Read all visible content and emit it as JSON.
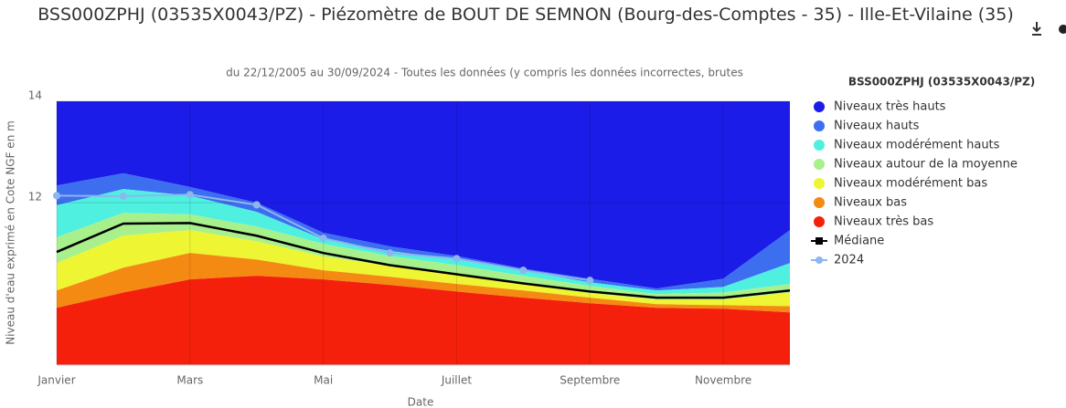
{
  "chart_data": {
    "type": "area",
    "title": "BSS000ZPHJ (03535X0043/PZ) - Piézomètre de BOUT DE SEMNON (Bourg-des-Comptes - 35) - Ille-Et-Vilaine (35)",
    "subtitle": "du 22/12/2005 au 30/09/2024 - Toutes les données (y compris les données incorrectes, brutes",
    "y_label": "Niveau d'eau exprimé en Cote NGF en m",
    "x_label": "Date",
    "legend_title": "BSS000ZPHJ (03535X0043/PZ)",
    "legend": "right",
    "grid": true,
    "categories": [
      "Janvier",
      null,
      "Mars",
      null,
      "Mai",
      null,
      "Juillet",
      null,
      "Septembre",
      null,
      "Novembre",
      null
    ],
    "ylim": [
      8.8,
      14
    ],
    "yticks": [
      12,
      14
    ],
    "series": [
      {
        "name": "Niveaux très hauts",
        "color": "#1c1ce8",
        "type": "area",
        "values": [
          14,
          14,
          14,
          14,
          14,
          14,
          14,
          14,
          14,
          14,
          14,
          14
        ]
      },
      {
        "name": "Niveaux hauts",
        "color": "#3d6ef0",
        "type": "area",
        "values": [
          12.34,
          12.58,
          12.31,
          12.0,
          11.41,
          11.14,
          10.95,
          10.7,
          10.5,
          10.31,
          10.5,
          11.46
        ]
      },
      {
        "name": "Niveaux modérément hauts",
        "color": "#4ff0e0",
        "type": "area",
        "values": [
          11.95,
          12.27,
          12.14,
          11.82,
          11.28,
          11.05,
          10.88,
          10.67,
          10.43,
          10.27,
          10.34,
          10.81
        ]
      },
      {
        "name": "Niveaux autour de la moyenne",
        "color": "#a8f08c",
        "type": "area",
        "values": [
          11.32,
          11.8,
          11.77,
          11.53,
          11.19,
          10.95,
          10.77,
          10.56,
          10.36,
          10.2,
          10.23,
          10.4
        ]
      },
      {
        "name": "Niveaux modérément bas",
        "color": "#eef532",
        "type": "area",
        "values": [
          10.81,
          11.35,
          11.46,
          11.24,
          10.94,
          10.76,
          10.58,
          10.4,
          10.22,
          10.09,
          10.09,
          10.23
        ]
      },
      {
        "name": "Niveaux bas",
        "color": "#f58a12",
        "type": "area",
        "values": [
          10.27,
          10.72,
          11.01,
          10.88,
          10.67,
          10.54,
          10.4,
          10.27,
          10.13,
          10.0,
          9.98,
          9.96
        ]
      },
      {
        "name": "Niveaux très bas",
        "color": "#f5200c",
        "type": "area",
        "values": [
          9.93,
          10.23,
          10.49,
          10.56,
          10.49,
          10.38,
          10.25,
          10.13,
          10.02,
          9.93,
          9.91,
          9.84
        ]
      },
      {
        "name": "Médiane",
        "color": "#000000",
        "type": "line",
        "marker": "square",
        "values": [
          11.03,
          11.59,
          11.6,
          11.35,
          11.01,
          10.77,
          10.59,
          10.41,
          10.25,
          10.13,
          10.13,
          10.27
        ]
      },
      {
        "name": "2024",
        "color": "#8db6ee",
        "type": "line",
        "marker": "circle",
        "values": [
          12.14,
          12.13,
          12.16,
          11.96,
          11.3,
          11.01,
          10.9,
          10.67,
          10.47,
          null,
          null,
          null
        ]
      }
    ]
  }
}
